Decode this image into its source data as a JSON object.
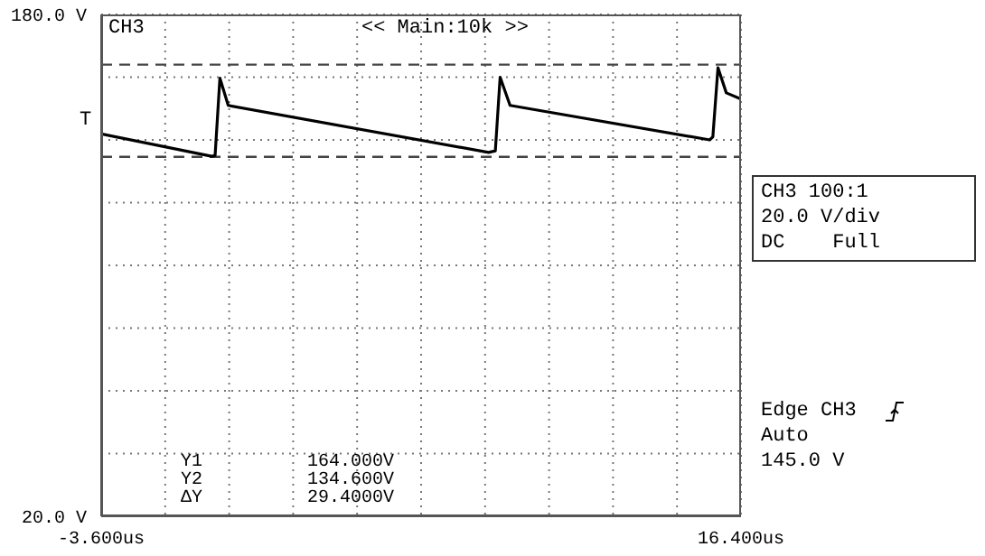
{
  "chart_data": {
    "type": "line",
    "x": [
      -3.6,
      -0.15,
      -0.04,
      0.11,
      0.37,
      8.51,
      8.72,
      8.87,
      9.18,
      15.42,
      15.52,
      15.68,
      15.94,
      16.4
    ],
    "series": [
      {
        "color": "#000000",
        "values": [
          141.9,
          134.8,
          135,
          159.7,
          151,
          136,
          136.5,
          160,
          151,
          140,
          141,
          163,
          155,
          153
        ]
      }
    ],
    "xlim": [
      -3.6,
      16.4
    ],
    "xticks": [
      {
        "value": -3.6,
        "label": "-3.600us"
      },
      {
        "value": -1.6,
        "label": null
      },
      {
        "value": 0.4,
        "label": null
      },
      {
        "value": 2.4,
        "label": null
      },
      {
        "value": 4.4,
        "label": null
      },
      {
        "value": 6.4,
        "label": null
      },
      {
        "value": 8.4,
        "label": null
      },
      {
        "value": 10.4,
        "label": null
      },
      {
        "value": 12.4,
        "label": null
      },
      {
        "value": 14.4,
        "label": null
      },
      {
        "value": 16.4,
        "label": "16.400us"
      }
    ],
    "ylim": [
      20,
      180
    ],
    "yticks": [
      {
        "value": 20,
        "label": "20.0 V"
      },
      {
        "value": 40,
        "label": null
      },
      {
        "value": 60,
        "label": null
      },
      {
        "value": 80,
        "label": null
      },
      {
        "value": 100,
        "label": null
      },
      {
        "value": 120,
        "label": null
      },
      {
        "value": 140,
        "label": null
      },
      {
        "value": 160,
        "label": null
      },
      {
        "value": 180,
        "label": "180.0 V"
      }
    ],
    "ref_lines": [
      {
        "axis": "y",
        "value": 164,
        "label": null,
        "color": "#444444",
        "line_style": "dashed"
      },
      {
        "axis": "y",
        "value": 134.6,
        "label": null,
        "color": "#444444",
        "line_style": "dashed"
      }
    ],
    "annotations": [
      "CH3",
      "<< Main:10k >>",
      "CH3 100:1",
      "20.0 V/div",
      "DC    Full",
      "Edge CH3",
      "Auto",
      "145.0 V",
      "Y1",
      "164.000V",
      "Y2",
      "134.600V",
      "ΔY",
      "29.4000V",
      "T"
    ],
    "grid": true,
    "marker": "none",
    "line_style": "solid"
  }
}
